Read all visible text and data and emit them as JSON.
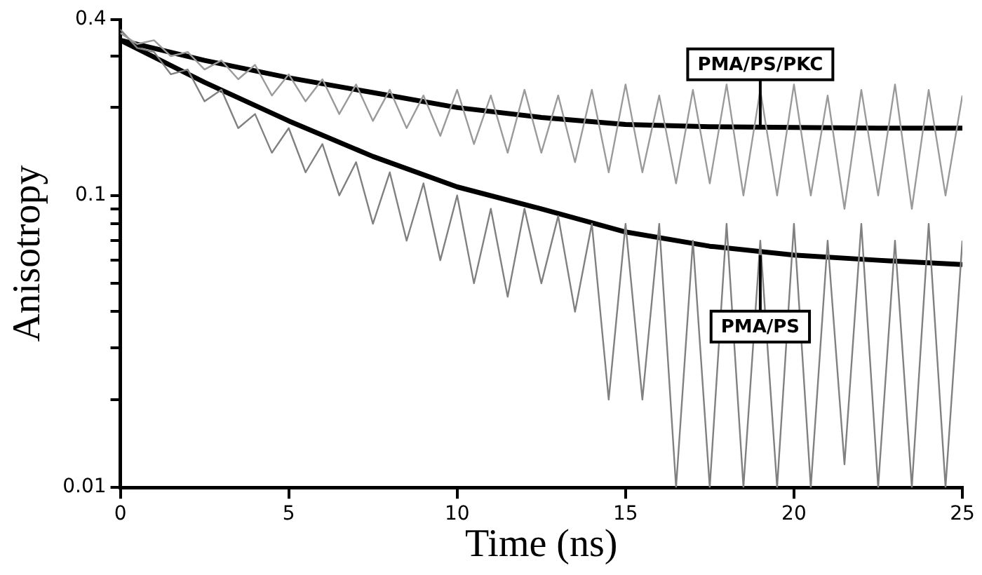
{
  "chart_data": {
    "type": "line",
    "xlabel": "Time (ns)",
    "ylabel": "Anisotropy",
    "log": true,
    "grid": false,
    "legend": false,
    "marker": "none",
    "x": [
      0,
      0.5,
      1,
      1.5,
      2,
      2.5,
      3,
      3.5,
      4,
      4.5,
      5,
      5.5,
      6,
      6.5,
      7,
      7.5,
      8,
      8.5,
      9,
      9.5,
      10,
      10.5,
      11,
      11.5,
      12,
      12.5,
      13,
      13.5,
      14,
      14.5,
      15,
      15.5,
      16,
      16.5,
      17,
      17.5,
      18,
      18.5,
      19,
      19.5,
      20,
      20.5,
      21,
      21.5,
      22,
      22.5,
      23,
      23.5,
      24,
      24.5,
      25
    ],
    "xlim": [
      0,
      25
    ],
    "xticks": [
      0,
      5,
      10,
      15,
      20,
      25
    ],
    "ylim": [
      0.01,
      0.4
    ],
    "yticks": [
      0.01,
      {
        "value": 0.02,
        "label": null
      },
      {
        "value": 0.03,
        "label": null
      },
      {
        "value": 0.04,
        "label": null
      },
      {
        "value": 0.05,
        "label": null
      },
      {
        "value": 0.06,
        "label": null
      },
      {
        "value": 0.07,
        "label": null
      },
      {
        "value": 0.08,
        "label": null
      },
      {
        "value": 0.09,
        "label": null
      },
      0.1,
      {
        "value": 0.2,
        "label": null
      },
      {
        "value": 0.3,
        "label": null
      },
      0.4
    ],
    "series": [
      {
        "color": "#9a9a9a",
        "values": [
          0.36,
          0.33,
          0.34,
          0.3,
          0.31,
          0.27,
          0.29,
          0.25,
          0.28,
          0.22,
          0.26,
          0.21,
          0.25,
          0.19,
          0.24,
          0.18,
          0.23,
          0.17,
          0.22,
          0.16,
          0.23,
          0.15,
          0.22,
          0.14,
          0.23,
          0.14,
          0.22,
          0.13,
          0.23,
          0.12,
          0.24,
          0.12,
          0.22,
          0.11,
          0.23,
          0.11,
          0.24,
          0.1,
          0.23,
          0.1,
          0.24,
          0.1,
          0.22,
          0.09,
          0.23,
          0.1,
          0.24,
          0.09,
          0.23,
          0.1,
          0.22
        ]
      },
      {
        "color": "#808080",
        "values": [
          0.37,
          0.32,
          0.31,
          0.26,
          0.27,
          0.21,
          0.23,
          0.17,
          0.19,
          0.14,
          0.17,
          0.12,
          0.15,
          0.1,
          0.13,
          0.08,
          0.12,
          0.07,
          0.11,
          0.06,
          0.1,
          0.05,
          0.09,
          0.045,
          0.09,
          0.05,
          0.085,
          0.04,
          0.08,
          0.02,
          0.08,
          0.02,
          0.08,
          0.01,
          0.07,
          0.01,
          0.08,
          0.01,
          0.07,
          0.01,
          0.08,
          0.01,
          0.07,
          0.012,
          0.08,
          0.01,
          0.07,
          0.01,
          0.08,
          0.01,
          0.07
        ]
      },
      {
        "color": "#000000",
        "x": [
          0,
          2.5,
          5,
          7.5,
          10,
          12.5,
          15,
          17.5,
          20,
          22.5,
          25
        ],
        "values": [
          0.34,
          0.29,
          0.253,
          0.225,
          0.2,
          0.185,
          0.175,
          0.172,
          0.171,
          0.17,
          0.17
        ]
      },
      {
        "color": "#000000",
        "x": [
          0,
          2.5,
          5,
          7.5,
          10,
          12.5,
          15,
          17.5,
          20,
          22.5,
          25
        ],
        "values": [
          0.34,
          0.244,
          0.18,
          0.136,
          0.107,
          0.09,
          0.075,
          0.067,
          0.0625,
          0.06,
          0.058
        ]
      }
    ],
    "annotations": [
      {
        "text": "PMA/PS/PKC",
        "x": 19,
        "y": 0.171
      },
      {
        "text": "PMA/PS",
        "x": 19,
        "y": 0.0625
      }
    ]
  }
}
